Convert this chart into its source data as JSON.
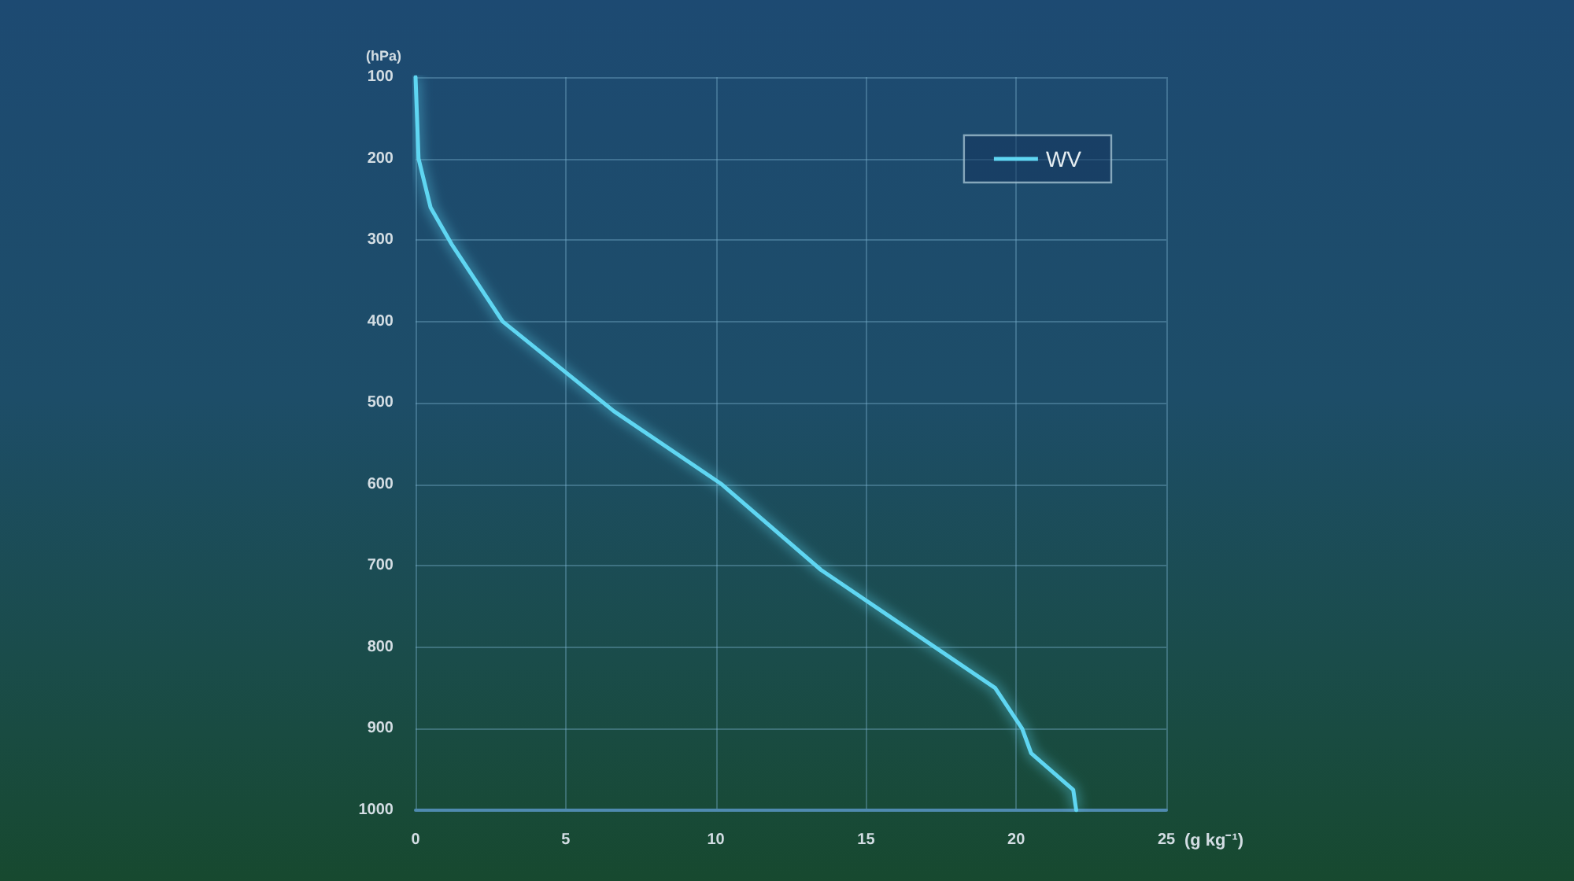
{
  "chart_data": {
    "type": "line",
    "xlabel": "(g kg⁻¹)",
    "ylabel": "(hPa)",
    "series": [
      {
        "name": "WV",
        "color": "#5fd6f2",
        "x": [
          0,
          0.1,
          0.3,
          0.5,
          1.2,
          2.9,
          6.6,
          10.2,
          13.5,
          19.3,
          20.2,
          20.5,
          21.9,
          22.0
        ],
        "values": [
          100,
          200,
          230,
          260,
          305,
          400,
          510,
          600,
          705,
          850,
          900,
          930,
          975,
          1000
        ]
      }
    ],
    "xlim": [
      0,
      25
    ],
    "xticks": [
      0,
      5,
      10,
      15,
      20,
      25
    ],
    "ylim": [
      1000,
      100
    ],
    "yticks": [
      100,
      200,
      300,
      400,
      500,
      600,
      700,
      800,
      900,
      1000
    ],
    "grid": true,
    "legend": "top right",
    "marker": "none",
    "line_style": "solid"
  }
}
